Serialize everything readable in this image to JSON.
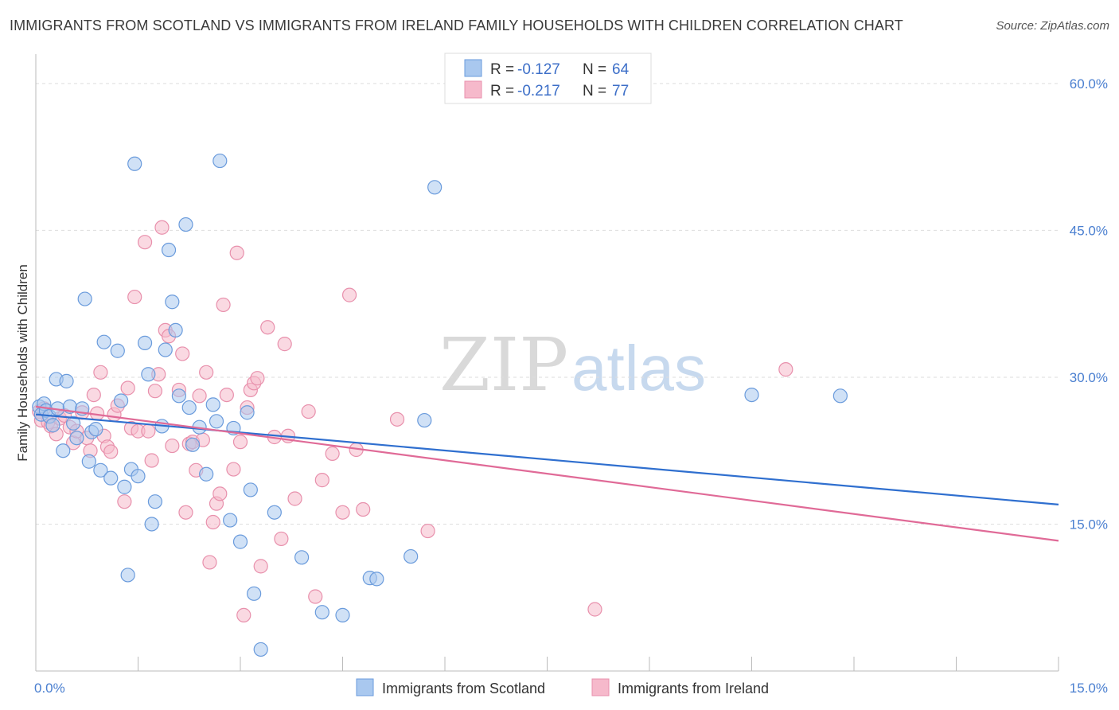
{
  "title": "IMMIGRANTS FROM SCOTLAND VS IMMIGRANTS FROM IRELAND FAMILY HOUSEHOLDS WITH CHILDREN CORRELATION CHART",
  "source": "Source: ZipAtlas.com",
  "watermark": {
    "zip": "ZIP",
    "atlas": "atlas"
  },
  "legend_top": [
    {
      "r_label": "R =",
      "r_value": "-0.127",
      "n_label": "N =",
      "n_value": "64"
    },
    {
      "r_label": "R =",
      "r_value": "-0.217",
      "n_label": "N =",
      "n_value": "77"
    }
  ],
  "colors": {
    "scotland_fill": "#a9c8ef",
    "scotland_stroke": "#6a9bdc",
    "scotland_line": "#2f6fcf",
    "ireland_fill": "#f6b9cb",
    "ireland_stroke": "#e890ac",
    "ireland_line": "#e06a97",
    "tick_text": "#4a7fd0",
    "grid": "#dddddd"
  },
  "chart_data": {
    "type": "scatter",
    "title": "IMMIGRANTS FROM SCOTLAND VS IMMIGRANTS FROM IRELAND FAMILY HOUSEHOLDS WITH CHILDREN CORRELATION CHART",
    "xlabel": "",
    "ylabel": "Family Households with Children",
    "xlim": [
      0,
      15
    ],
    "ylim": [
      0,
      63
    ],
    "x_tick_labels": [
      "0.0%",
      "15.0%"
    ],
    "y_ticks": [
      15,
      30,
      45,
      60
    ],
    "y_tick_labels": [
      "15.0%",
      "30.0%",
      "45.0%",
      "60.0%"
    ],
    "grid": true,
    "legend_position": "bottom",
    "series": [
      {
        "name": "Immigrants from Scotland",
        "trend": {
          "x": [
            0,
            15
          ],
          "y": [
            26.2,
            17.0
          ]
        },
        "points": [
          [
            0.05,
            27.0
          ],
          [
            0.08,
            26.2
          ],
          [
            0.12,
            27.3
          ],
          [
            0.15,
            26.6
          ],
          [
            0.2,
            26.0
          ],
          [
            0.25,
            25.1
          ],
          [
            0.3,
            29.8
          ],
          [
            0.32,
            26.8
          ],
          [
            0.4,
            22.5
          ],
          [
            0.45,
            29.6
          ],
          [
            0.5,
            27.0
          ],
          [
            0.55,
            25.3
          ],
          [
            0.6,
            23.8
          ],
          [
            0.68,
            26.8
          ],
          [
            0.72,
            38.0
          ],
          [
            0.78,
            21.4
          ],
          [
            0.82,
            24.4
          ],
          [
            0.88,
            24.7
          ],
          [
            0.95,
            20.5
          ],
          [
            1.0,
            33.6
          ],
          [
            1.1,
            19.7
          ],
          [
            1.2,
            32.7
          ],
          [
            1.25,
            27.6
          ],
          [
            1.3,
            18.8
          ],
          [
            1.35,
            9.8
          ],
          [
            1.4,
            20.6
          ],
          [
            1.45,
            51.8
          ],
          [
            1.5,
            19.9
          ],
          [
            1.6,
            33.5
          ],
          [
            1.65,
            30.3
          ],
          [
            1.7,
            15.0
          ],
          [
            1.75,
            17.3
          ],
          [
            1.85,
            25.0
          ],
          [
            1.9,
            32.8
          ],
          [
            1.95,
            43.0
          ],
          [
            2.0,
            37.7
          ],
          [
            2.05,
            34.8
          ],
          [
            2.1,
            28.1
          ],
          [
            2.2,
            45.6
          ],
          [
            2.25,
            26.9
          ],
          [
            2.3,
            23.1
          ],
          [
            2.4,
            24.9
          ],
          [
            2.5,
            20.1
          ],
          [
            2.6,
            27.2
          ],
          [
            2.65,
            25.5
          ],
          [
            2.7,
            52.1
          ],
          [
            2.85,
            15.4
          ],
          [
            2.9,
            24.8
          ],
          [
            3.0,
            13.2
          ],
          [
            3.1,
            26.4
          ],
          [
            3.15,
            18.5
          ],
          [
            3.2,
            7.9
          ],
          [
            3.3,
            2.2
          ],
          [
            3.5,
            16.2
          ],
          [
            3.9,
            11.6
          ],
          [
            4.2,
            6.0
          ],
          [
            4.5,
            5.7
          ],
          [
            4.9,
            9.5
          ],
          [
            5.0,
            9.4
          ],
          [
            5.5,
            11.7
          ],
          [
            5.7,
            25.6
          ],
          [
            5.85,
            49.4
          ],
          [
            10.5,
            28.2
          ],
          [
            11.8,
            28.1
          ]
        ]
      },
      {
        "name": "Immigrants from Ireland",
        "trend": {
          "x": [
            0,
            15
          ],
          "y": [
            27.0,
            13.3
          ]
        },
        "points": [
          [
            0.05,
            26.5
          ],
          [
            0.08,
            25.6
          ],
          [
            0.12,
            26.8
          ],
          [
            0.18,
            25.4
          ],
          [
            0.22,
            25.0
          ],
          [
            0.3,
            24.2
          ],
          [
            0.35,
            25.8
          ],
          [
            0.42,
            26.1
          ],
          [
            0.5,
            24.9
          ],
          [
            0.55,
            23.3
          ],
          [
            0.6,
            24.5
          ],
          [
            0.68,
            26.4
          ],
          [
            0.75,
            23.8
          ],
          [
            0.8,
            22.5
          ],
          [
            0.85,
            28.2
          ],
          [
            0.9,
            26.3
          ],
          [
            0.95,
            30.5
          ],
          [
            1.0,
            24.0
          ],
          [
            1.05,
            22.9
          ],
          [
            1.1,
            22.4
          ],
          [
            1.15,
            26.2
          ],
          [
            1.2,
            27.1
          ],
          [
            1.3,
            17.3
          ],
          [
            1.35,
            28.9
          ],
          [
            1.4,
            24.8
          ],
          [
            1.45,
            38.2
          ],
          [
            1.5,
            24.5
          ],
          [
            1.6,
            43.8
          ],
          [
            1.65,
            24.5
          ],
          [
            1.7,
            21.5
          ],
          [
            1.75,
            28.6
          ],
          [
            1.8,
            30.3
          ],
          [
            1.85,
            45.3
          ],
          [
            1.9,
            34.8
          ],
          [
            1.95,
            34.2
          ],
          [
            2.0,
            23.0
          ],
          [
            2.1,
            28.7
          ],
          [
            2.15,
            32.4
          ],
          [
            2.2,
            16.2
          ],
          [
            2.25,
            23.2
          ],
          [
            2.3,
            23.4
          ],
          [
            2.35,
            20.5
          ],
          [
            2.4,
            28.1
          ],
          [
            2.45,
            23.6
          ],
          [
            2.5,
            30.5
          ],
          [
            2.55,
            11.1
          ],
          [
            2.6,
            15.2
          ],
          [
            2.65,
            17.1
          ],
          [
            2.7,
            18.1
          ],
          [
            2.75,
            37.4
          ],
          [
            2.8,
            28.2
          ],
          [
            2.9,
            20.6
          ],
          [
            2.95,
            42.7
          ],
          [
            3.0,
            23.4
          ],
          [
            3.05,
            5.7
          ],
          [
            3.1,
            26.9
          ],
          [
            3.15,
            28.7
          ],
          [
            3.2,
            29.4
          ],
          [
            3.25,
            29.9
          ],
          [
            3.3,
            10.7
          ],
          [
            3.4,
            35.1
          ],
          [
            3.5,
            23.9
          ],
          [
            3.6,
            13.5
          ],
          [
            3.65,
            33.4
          ],
          [
            3.7,
            24.0
          ],
          [
            3.8,
            17.6
          ],
          [
            4.0,
            26.5
          ],
          [
            4.1,
            7.6
          ],
          [
            4.2,
            19.5
          ],
          [
            4.35,
            22.2
          ],
          [
            4.5,
            16.2
          ],
          [
            4.6,
            38.4
          ],
          [
            4.7,
            22.6
          ],
          [
            4.8,
            16.5
          ],
          [
            5.3,
            25.7
          ],
          [
            5.75,
            14.3
          ],
          [
            8.2,
            6.3
          ],
          [
            11.0,
            30.8
          ]
        ]
      }
    ]
  },
  "bottom_legend": [
    {
      "label": "Immigrants from Scotland"
    },
    {
      "label": "Immigrants from Ireland"
    }
  ]
}
